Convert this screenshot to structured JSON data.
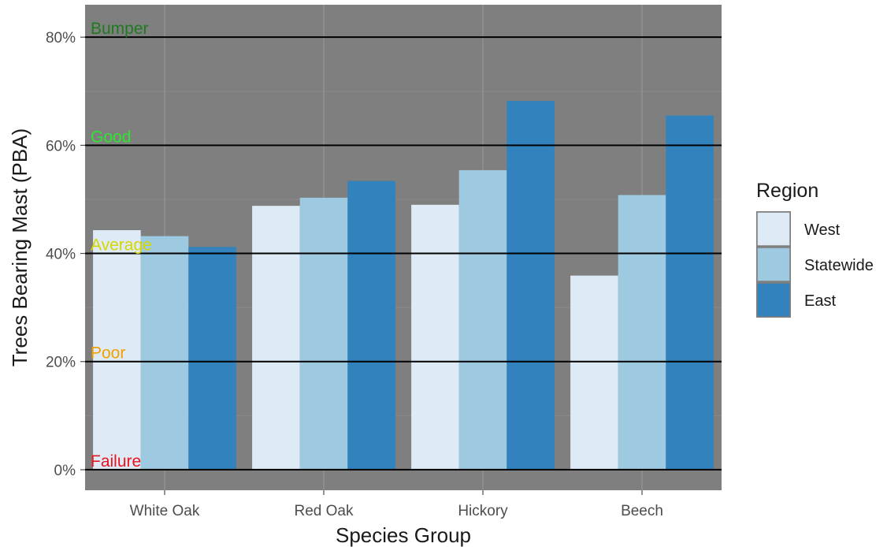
{
  "chart_data": {
    "type": "bar",
    "xlabel": "Species Group",
    "ylabel": "Trees Bearing Mast (PBA)",
    "categories": [
      "White Oak",
      "Red Oak",
      "Hickory",
      "Beech"
    ],
    "series": [
      {
        "name": "West",
        "values": [
          44.3,
          48.8,
          49.0,
          35.9
        ],
        "color": "#deebf7"
      },
      {
        "name": "Statewide",
        "values": [
          43.2,
          50.3,
          55.4,
          50.8
        ],
        "color": "#9ecae1"
      },
      {
        "name": "East",
        "values": [
          41.2,
          53.4,
          68.2,
          65.5
        ],
        "color": "#3182bd"
      }
    ],
    "ylim": [
      -3.8,
      86
    ],
    "yticks": [
      0,
      20,
      40,
      60,
      80
    ],
    "ytick_labels": [
      "0%",
      "20%",
      "40%",
      "60%",
      "80%"
    ],
    "reference_lines": [
      {
        "label": "Bumper",
        "value": 80,
        "color": "#1f7a1f"
      },
      {
        "label": "Good",
        "value": 60,
        "color": "#2ee62e"
      },
      {
        "label": "Average",
        "value": 40,
        "color": "#d6d600"
      },
      {
        "label": "Poor",
        "value": 20,
        "color": "#f2a000"
      },
      {
        "label": "Failure",
        "value": 0,
        "color": "#e8141e"
      }
    ],
    "legend": {
      "title": "Region",
      "position": "right"
    },
    "grid": true,
    "panel_background": "#7f7f7f"
  }
}
